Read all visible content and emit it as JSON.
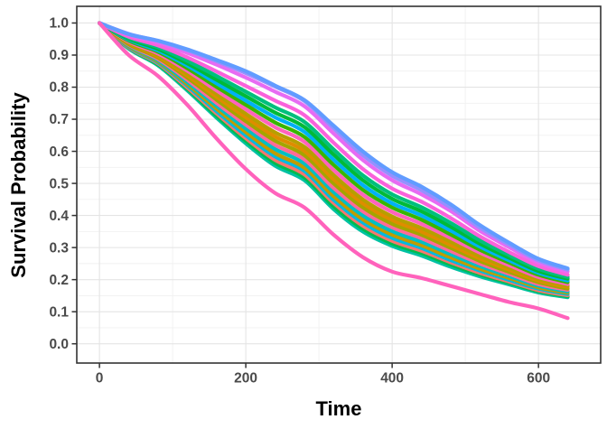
{
  "figure": {
    "xlabel": "Time",
    "ylabel": "Survival Probability"
  },
  "chart_data": {
    "type": "line",
    "title": "",
    "xlabel": "Time",
    "ylabel": "Survival Probability",
    "legend": "none",
    "grid": "major+minor",
    "xlim": [
      -31,
      685
    ],
    "ylim": [
      -0.06,
      1.052
    ],
    "x_ticks": {
      "values": [
        0,
        200,
        400,
        600
      ],
      "labels": [
        "0",
        "200",
        "400",
        "600"
      ]
    },
    "y_ticks": {
      "values": [
        1.0,
        0.9,
        0.8,
        0.7,
        0.6,
        0.5,
        0.4,
        0.3,
        0.2,
        0.1,
        0.0
      ],
      "labels": [
        "1.0",
        "0.9",
        "0.8",
        "0.7",
        "0.6",
        "0.5",
        "0.4",
        "0.3",
        "0.2",
        "0.1",
        "0.0"
      ]
    },
    "x_minor_ticks": [
      100,
      300,
      500
    ],
    "y_minor_ticks": [
      0.05,
      0.15,
      0.25,
      0.35,
      0.45,
      0.55,
      0.65,
      0.75,
      0.85,
      0.95
    ],
    "x": [
      0,
      40,
      80,
      120,
      160,
      200,
      240,
      280,
      320,
      360,
      400,
      440,
      480,
      520,
      560,
      600,
      640
    ],
    "series": [
      {
        "name": "curve-01",
        "color": "#619CFF",
        "values": [
          1.0,
          0.965,
          0.945,
          0.918,
          0.885,
          0.85,
          0.805,
          0.76,
          0.68,
          0.6,
          0.535,
          0.49,
          0.435,
          0.37,
          0.315,
          0.265,
          0.235
        ]
      },
      {
        "name": "curve-02",
        "color": "#9590FF",
        "values": [
          1.0,
          0.966,
          0.944,
          0.915,
          0.881,
          0.844,
          0.802,
          0.757,
          0.672,
          0.588,
          0.524,
          0.479,
          0.425,
          0.362,
          0.309,
          0.26,
          0.231
        ]
      },
      {
        "name": "curve-03",
        "color": "#E76BF3",
        "values": [
          1.0,
          0.963,
          0.939,
          0.907,
          0.87,
          0.83,
          0.786,
          0.741,
          0.656,
          0.573,
          0.51,
          0.466,
          0.414,
          0.352,
          0.301,
          0.253,
          0.225
        ]
      },
      {
        "name": "curve-04",
        "color": "#FA62DB",
        "values": [
          1.0,
          0.957,
          0.93,
          0.893,
          0.849,
          0.804,
          0.758,
          0.713,
          0.627,
          0.545,
          0.484,
          0.443,
          0.392,
          0.335,
          0.286,
          0.242,
          0.215
        ]
      },
      {
        "name": "curve-05",
        "color": "#00BF7D",
        "values": [
          1.0,
          0.954,
          0.924,
          0.882,
          0.835,
          0.786,
          0.737,
          0.692,
          0.606,
          0.525,
          0.466,
          0.426,
          0.377,
          0.322,
          0.276,
          0.234,
          0.208
        ]
      },
      {
        "name": "curve-06",
        "color": "#00BA38",
        "values": [
          1.0,
          0.951,
          0.919,
          0.874,
          0.823,
          0.772,
          0.721,
          0.676,
          0.59,
          0.51,
          0.452,
          0.413,
          0.365,
          0.312,
          0.268,
          0.227,
          0.203
        ]
      },
      {
        "name": "curve-07",
        "color": "#00B0F6",
        "values": [
          1.0,
          0.948,
          0.914,
          0.867,
          0.812,
          0.758,
          0.706,
          0.661,
          0.574,
          0.495,
          0.438,
          0.4,
          0.353,
          0.303,
          0.26,
          0.221,
          0.197
        ]
      },
      {
        "name": "curve-08",
        "color": "#39B600",
        "values": [
          1.0,
          0.945,
          0.91,
          0.859,
          0.801,
          0.745,
          0.69,
          0.645,
          0.558,
          0.48,
          0.425,
          0.387,
          0.341,
          0.293,
          0.253,
          0.215,
          0.192
        ]
      },
      {
        "name": "curve-09",
        "color": "#FF62BC",
        "values": [
          1.0,
          0.942,
          0.905,
          0.851,
          0.79,
          0.731,
          0.675,
          0.63,
          0.542,
          0.465,
          0.411,
          0.374,
          0.33,
          0.284,
          0.245,
          0.208,
          0.186
        ]
      },
      {
        "name": "curve-10",
        "color": "#B79F00",
        "values": [
          1.0,
          0.939,
          0.9,
          0.843,
          0.779,
          0.717,
          0.659,
          0.614,
          0.526,
          0.45,
          0.397,
          0.361,
          0.318,
          0.274,
          0.237,
          0.202,
          0.181
        ]
      },
      {
        "name": "curve-11",
        "color": "#DE8C00",
        "values": [
          1.0,
          0.937,
          0.896,
          0.836,
          0.77,
          0.706,
          0.646,
          0.601,
          0.513,
          0.438,
          0.386,
          0.35,
          0.308,
          0.266,
          0.231,
          0.197,
          0.177
        ]
      },
      {
        "name": "curve-12",
        "color": "#A3A500",
        "values": [
          1.0,
          0.934,
          0.892,
          0.83,
          0.761,
          0.694,
          0.633,
          0.588,
          0.5,
          0.425,
          0.374,
          0.34,
          0.299,
          0.258,
          0.224,
          0.192,
          0.172
        ]
      },
      {
        "name": "curve-13",
        "color": "#FF6A98",
        "values": [
          1.0,
          0.932,
          0.888,
          0.823,
          0.751,
          0.683,
          0.62,
          0.575,
          0.486,
          0.413,
          0.363,
          0.329,
          0.289,
          0.25,
          0.218,
          0.186,
          0.168
        ]
      },
      {
        "name": "curve-14",
        "color": "#00BFC4",
        "values": [
          1.0,
          0.93,
          0.884,
          0.816,
          0.742,
          0.671,
          0.607,
          0.562,
          0.473,
          0.4,
          0.351,
          0.318,
          0.279,
          0.242,
          0.211,
          0.181,
          0.163
        ]
      },
      {
        "name": "curve-15",
        "color": "#C09B00",
        "values": [
          1.0,
          0.927,
          0.88,
          0.81,
          0.733,
          0.66,
          0.594,
          0.549,
          0.46,
          0.388,
          0.34,
          0.307,
          0.269,
          0.234,
          0.205,
          0.176,
          0.159
        ]
      },
      {
        "name": "curve-16",
        "color": "#00BAE0",
        "values": [
          1.0,
          0.925,
          0.877,
          0.805,
          0.725,
          0.65,
          0.584,
          0.539,
          0.449,
          0.378,
          0.33,
          0.299,
          0.261,
          0.228,
          0.199,
          0.172,
          0.155
        ]
      },
      {
        "name": "curve-17",
        "color": "#F8766D",
        "values": [
          1.0,
          0.923,
          0.874,
          0.799,
          0.718,
          0.641,
          0.573,
          0.528,
          0.439,
          0.368,
          0.321,
          0.29,
          0.254,
          0.221,
          0.194,
          0.167,
          0.151
        ]
      },
      {
        "name": "curve-18",
        "color": "#00BB4E",
        "values": [
          1.0,
          0.922,
          0.871,
          0.795,
          0.711,
          0.633,
          0.564,
          0.519,
          0.429,
          0.359,
          0.313,
          0.283,
          0.247,
          0.216,
          0.19,
          0.164,
          0.148
        ]
      },
      {
        "name": "curve-19",
        "color": "#00C1A3",
        "values": [
          1.0,
          0.92,
          0.868,
          0.79,
          0.705,
          0.625,
          0.555,
          0.51,
          0.42,
          0.35,
          0.305,
          0.275,
          0.24,
          0.21,
          0.185,
          0.16,
          0.145
        ]
      },
      {
        "name": "curve-20",
        "color": "#FF62BC",
        "values": [
          1.0,
          0.9,
          0.835,
          0.745,
          0.64,
          0.545,
          0.47,
          0.425,
          0.34,
          0.27,
          0.225,
          0.205,
          0.18,
          0.155,
          0.13,
          0.11,
          0.08
        ]
      }
    ]
  }
}
